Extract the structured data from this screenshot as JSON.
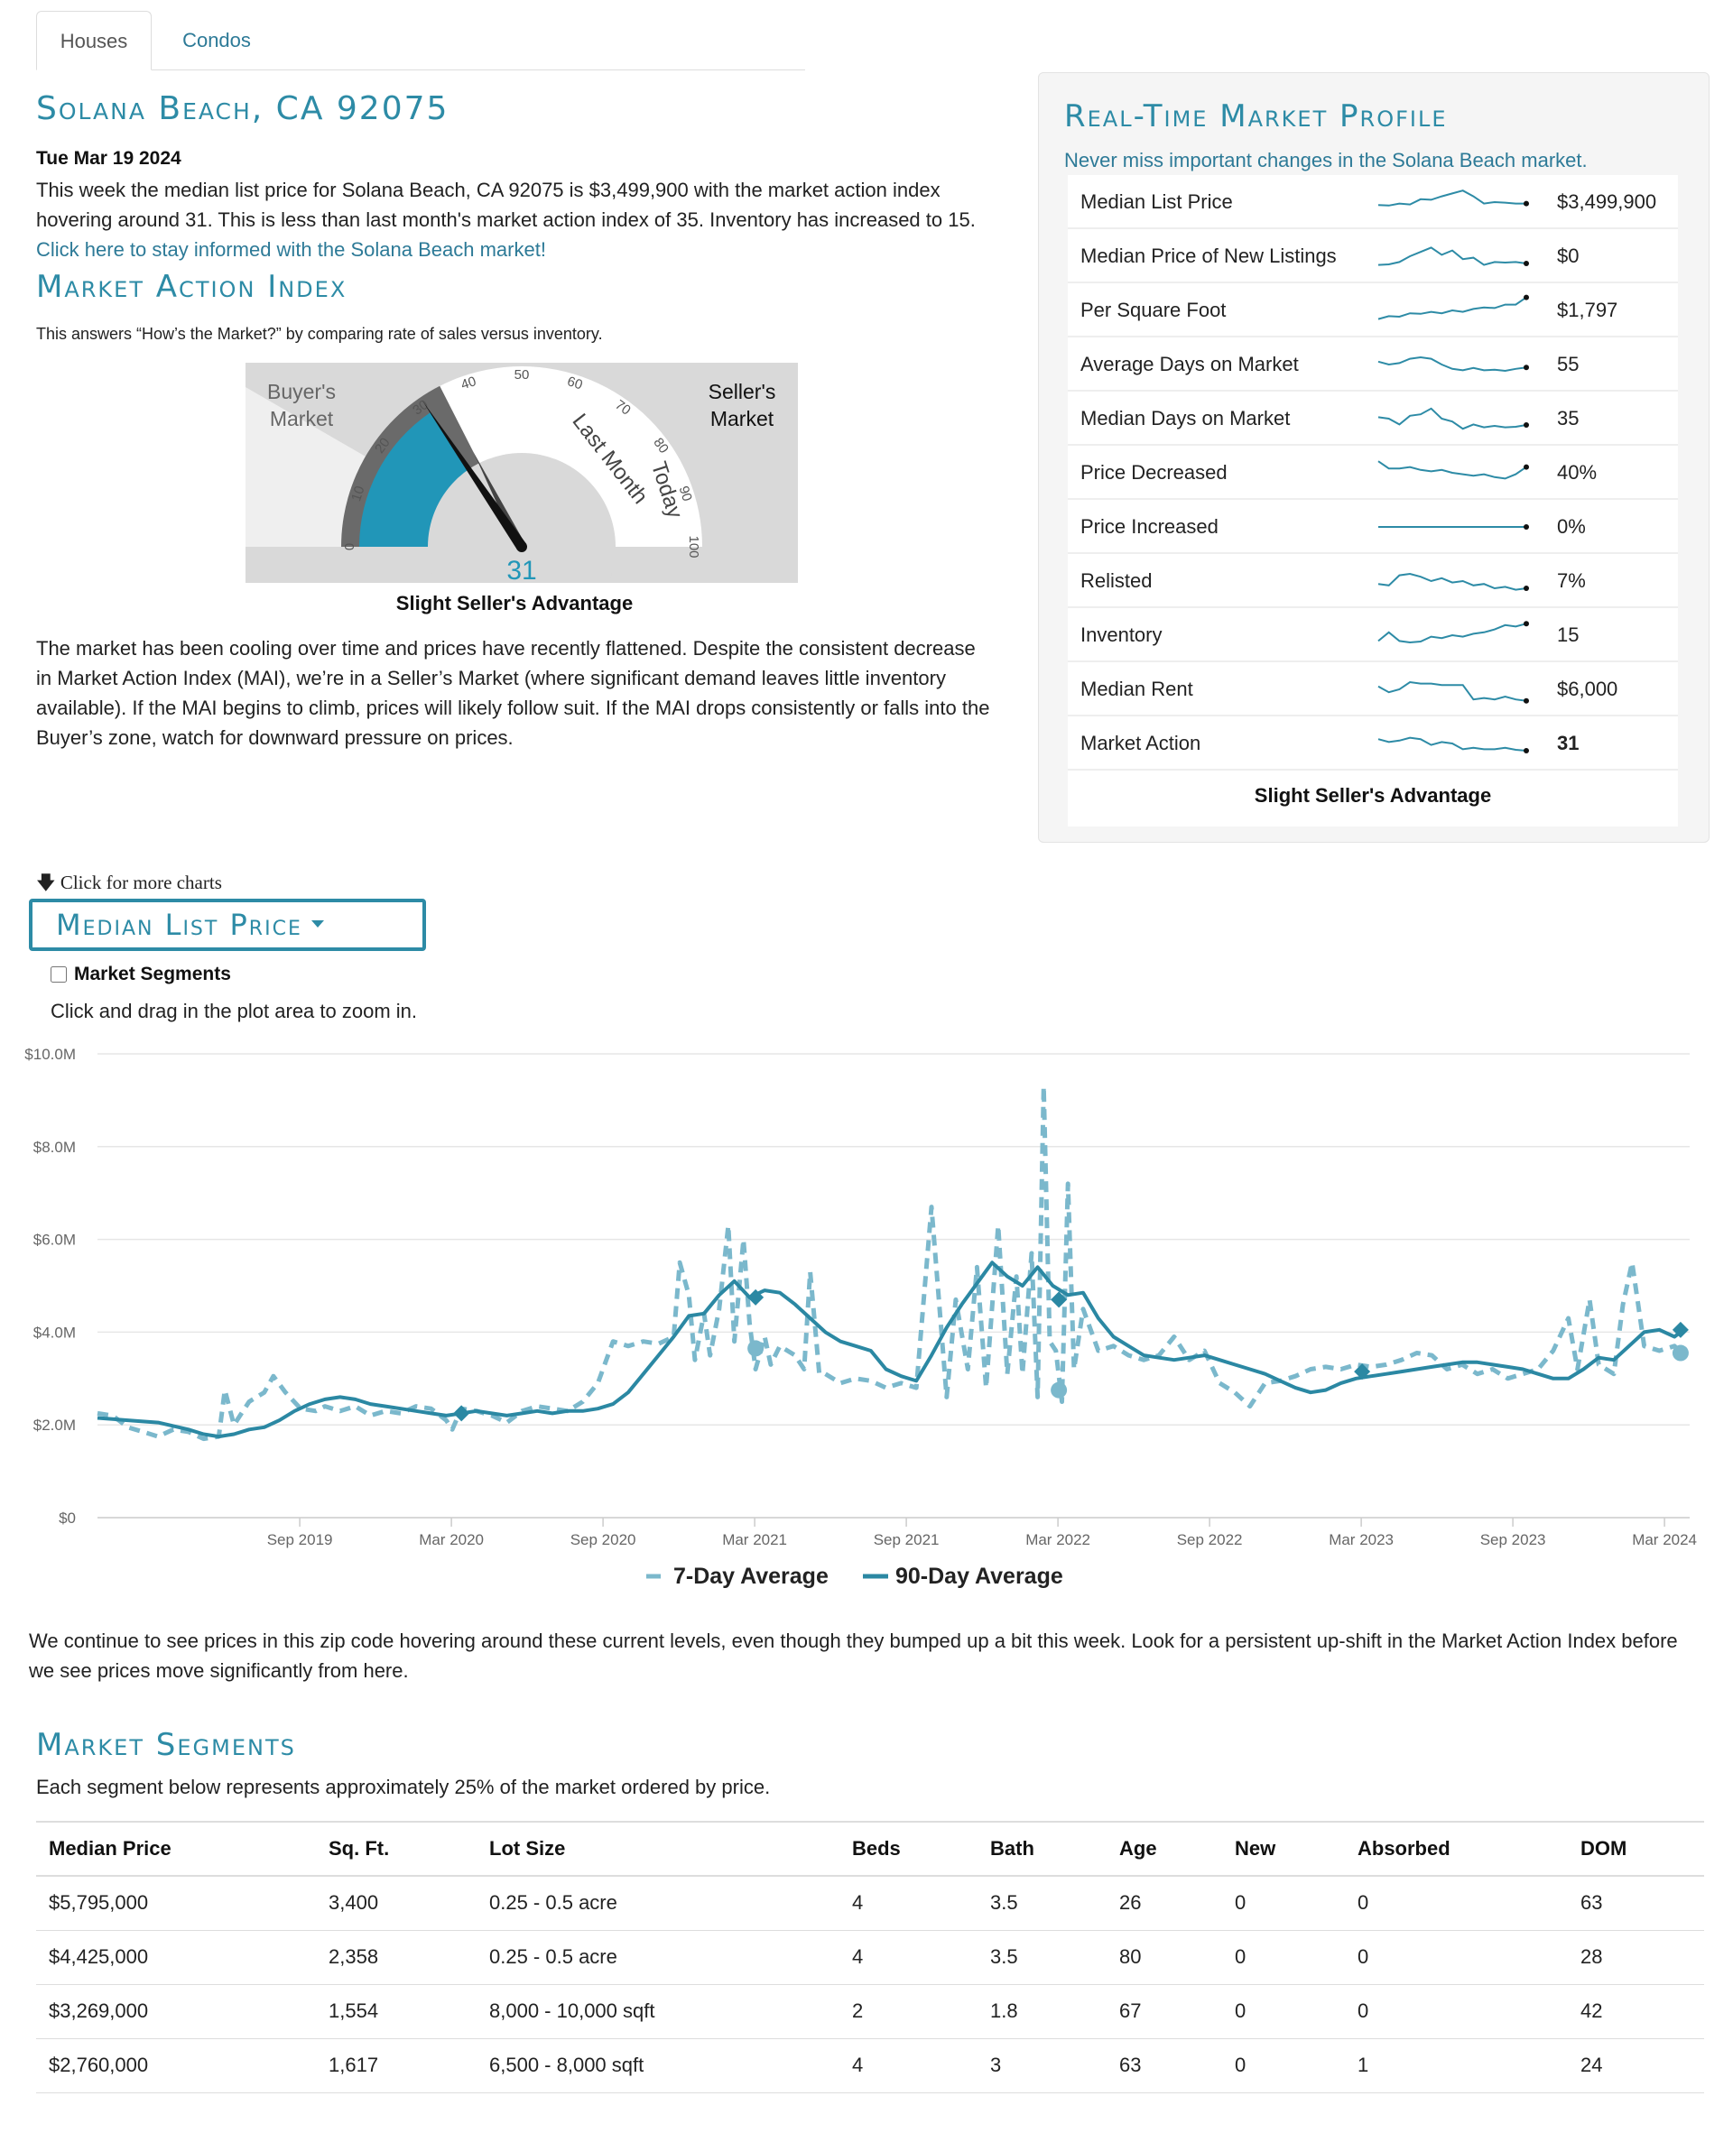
{
  "tabs": [
    {
      "label": "Houses",
      "active": true
    },
    {
      "label": "Condos",
      "active": false
    }
  ],
  "location": {
    "title": "Solana Beach, CA 92075",
    "date": "Tue Mar 19 2024",
    "intro": "This week the median list price for Solana Beach, CA 92075 is $3,499,900 with the market action index hovering around 31. This is less than last month's market action index of 35. Inventory has increased to 15. ",
    "intro_link": "Click here to stay informed with the Solana Beach market!"
  },
  "mai": {
    "title": "Market Action Index",
    "subtitle": "This answers “How’s the Market?” by comparing rate of sales versus inventory.",
    "buyers_line1": "Buyer's",
    "buyers_line2": "Market",
    "sellers_line1": "Seller's",
    "sellers_line2": "Market",
    "last_month_label": "Last Month",
    "today_label": "Today",
    "value": 31,
    "last_month_value": 35,
    "scale_min": 0,
    "scale_max": 100,
    "ticks": [
      "0",
      "10",
      "20",
      "30",
      "40",
      "50",
      "60",
      "70",
      "80",
      "90",
      "100"
    ],
    "caption": "Slight Seller's Advantage",
    "description": "The market has been cooling over time and prices have recently flattened. Despite the consistent decrease in Market Action Index (MAI), we’re in a Seller’s Market (where significant demand leaves little inventory available). If the MAI begins to climb, prices will likely follow suit. If the MAI drops consistently or falls into the Buyer’s zone, watch for downward pressure on prices.",
    "colors": {
      "today": "#2196b8",
      "last_month": "#6a6a6a",
      "panel": "#d9d9d9"
    }
  },
  "profile": {
    "title": "Real-Time Market Profile",
    "subtitle": "Never miss important changes in the Solana Beach market.",
    "rows": [
      {
        "label": "Median List Price",
        "value": "$3,499,900",
        "bold": false,
        "spark": [
          0.6,
          0.62,
          0.55,
          0.58,
          0.4,
          0.42,
          0.3,
          0.2,
          0.1,
          0.3,
          0.55,
          0.5,
          0.52,
          0.55,
          0.55
        ]
      },
      {
        "label": "Median Price of New Listings",
        "value": "$0",
        "bold": false,
        "spark": [
          0.8,
          0.78,
          0.7,
          0.5,
          0.35,
          0.2,
          0.45,
          0.3,
          0.6,
          0.55,
          0.8,
          0.7,
          0.72,
          0.7,
          0.75
        ]
      },
      {
        "label": "Per Square Foot",
        "value": "$1,797",
        "bold": false,
        "spark": [
          0.8,
          0.7,
          0.72,
          0.6,
          0.62,
          0.55,
          0.6,
          0.5,
          0.55,
          0.45,
          0.4,
          0.42,
          0.3,
          0.3,
          0.05
        ]
      },
      {
        "label": "Average Days on Market",
        "value": "55",
        "bold": false,
        "spark": [
          0.4,
          0.5,
          0.45,
          0.3,
          0.25,
          0.3,
          0.5,
          0.65,
          0.7,
          0.62,
          0.7,
          0.68,
          0.72,
          0.65,
          0.6
        ]
      },
      {
        "label": "Median Days on Market",
        "value": "35",
        "bold": false,
        "spark": [
          0.45,
          0.5,
          0.7,
          0.4,
          0.35,
          0.15,
          0.5,
          0.6,
          0.85,
          0.7,
          0.8,
          0.75,
          0.8,
          0.78,
          0.72
        ]
      },
      {
        "label": "Price Decreased",
        "value": "40%",
        "bold": false,
        "spark": [
          0.1,
          0.35,
          0.35,
          0.3,
          0.4,
          0.45,
          0.4,
          0.5,
          0.55,
          0.6,
          0.55,
          0.65,
          0.7,
          0.55,
          0.3
        ]
      },
      {
        "label": "Price Increased",
        "value": "0%",
        "bold": false,
        "spark": [
          0.5,
          0.5,
          0.5,
          0.5,
          0.5,
          0.5,
          0.5,
          0.5,
          0.5,
          0.5,
          0.5,
          0.5,
          0.5,
          0.5,
          0.5
        ]
      },
      {
        "label": "Relisted",
        "value": "7%",
        "bold": false,
        "spark": [
          0.6,
          0.65,
          0.3,
          0.25,
          0.35,
          0.5,
          0.4,
          0.55,
          0.5,
          0.65,
          0.6,
          0.75,
          0.7,
          0.8,
          0.75
        ]
      },
      {
        "label": "Inventory",
        "value": "15",
        "bold": false,
        "spark": [
          0.7,
          0.4,
          0.7,
          0.75,
          0.72,
          0.55,
          0.6,
          0.5,
          0.55,
          0.45,
          0.4,
          0.3,
          0.15,
          0.2,
          0.1
        ]
      },
      {
        "label": "Median Rent",
        "value": "$6,000",
        "bold": false,
        "spark": [
          0.4,
          0.6,
          0.5,
          0.25,
          0.3,
          0.3,
          0.35,
          0.35,
          0.35,
          0.85,
          0.8,
          0.85,
          0.75,
          0.85,
          0.9
        ]
      },
      {
        "label": "Market Action",
        "value": "31",
        "bold": true,
        "spark": [
          0.35,
          0.45,
          0.4,
          0.3,
          0.35,
          0.55,
          0.45,
          0.5,
          0.7,
          0.65,
          0.7,
          0.7,
          0.65,
          0.72,
          0.75
        ]
      }
    ],
    "footer": "Slight Seller's Advantage",
    "colors": {
      "spark": "#2d8ba6",
      "spark_end": "#111111"
    }
  },
  "chart_controls": {
    "more_charts": "Click for more charts",
    "metric_label": "Median List Price",
    "segments_checkbox": "Market Segments",
    "zoom_note": "Click and drag in the plot area to zoom in."
  },
  "chart_data": {
    "type": "line",
    "title": "Median List Price",
    "xlabel": "",
    "ylabel": "",
    "ylim": [
      0,
      10000000
    ],
    "y_ticks": [
      {
        "value": 0,
        "label": "$0"
      },
      {
        "value": 2000000,
        "label": "$2.0M"
      },
      {
        "value": 4000000,
        "label": "$4.0M"
      },
      {
        "value": 6000000,
        "label": "$6.0M"
      },
      {
        "value": 8000000,
        "label": "$8.0M"
      },
      {
        "value": 10000000,
        "label": "$10.0M"
      }
    ],
    "x_range": [
      2019.0,
      2024.25
    ],
    "x_ticks": [
      {
        "value": 2019.667,
        "label": "Sep 2019"
      },
      {
        "value": 2020.167,
        "label": "Mar 2020"
      },
      {
        "value": 2020.667,
        "label": "Sep 2020"
      },
      {
        "value": 2021.167,
        "label": "Mar 2021"
      },
      {
        "value": 2021.667,
        "label": "Sep 2021"
      },
      {
        "value": 2022.167,
        "label": "Mar 2022"
      },
      {
        "value": 2022.667,
        "label": "Sep 2022"
      },
      {
        "value": 2023.167,
        "label": "Mar 2023"
      },
      {
        "value": 2023.667,
        "label": "Sep 2023"
      },
      {
        "value": 2024.167,
        "label": "Mar 2024"
      }
    ],
    "grid": true,
    "legend": "bottom-center",
    "series": [
      {
        "name": "7-Day Average",
        "style": "dashed",
        "color": "#7bb8cc",
        "x": [
          2019.0,
          2019.05,
          2019.1,
          2019.15,
          2019.2,
          2019.25,
          2019.3,
          2019.35,
          2019.4,
          2019.42,
          2019.45,
          2019.5,
          2019.55,
          2019.58,
          2019.62,
          2019.67,
          2019.72,
          2019.75,
          2019.8,
          2019.85,
          2019.9,
          2019.95,
          2020.0,
          2020.05,
          2020.1,
          2020.15,
          2020.17,
          2020.2,
          2020.25,
          2020.3,
          2020.35,
          2020.4,
          2020.45,
          2020.5,
          2020.55,
          2020.6,
          2020.65,
          2020.7,
          2020.75,
          2020.8,
          2020.85,
          2020.9,
          2020.92,
          2020.95,
          2020.97,
          2021.0,
          2021.02,
          2021.05,
          2021.08,
          2021.1,
          2021.13,
          2021.15,
          2021.17,
          2021.2,
          2021.22,
          2021.25,
          2021.3,
          2021.33,
          2021.35,
          2021.38,
          2021.4,
          2021.45,
          2021.5,
          2021.55,
          2021.6,
          2021.65,
          2021.7,
          2021.75,
          2021.8,
          2021.83,
          2021.87,
          2021.9,
          2021.93,
          2021.97,
          2022.0,
          2022.03,
          2022.05,
          2022.08,
          2022.1,
          2022.12,
          2022.14,
          2022.16,
          2022.18,
          2022.2,
          2022.22,
          2022.25,
          2022.3,
          2022.35,
          2022.4,
          2022.45,
          2022.5,
          2022.55,
          2022.6,
          2022.65,
          2022.7,
          2022.75,
          2022.8,
          2022.85,
          2022.9,
          2022.95,
          2023.0,
          2023.05,
          2023.1,
          2023.15,
          2023.2,
          2023.25,
          2023.3,
          2023.35,
          2023.4,
          2023.45,
          2023.5,
          2023.55,
          2023.6,
          2023.65,
          2023.7,
          2023.75,
          2023.8,
          2023.85,
          2023.88,
          2023.92,
          2023.95,
          2024.0,
          2024.03,
          2024.06,
          2024.1,
          2024.15,
          2024.2,
          2024.22
        ],
        "y": [
          2250000,
          2200000,
          1950000,
          1850000,
          1750000,
          1900000,
          1850000,
          1700000,
          1750000,
          2750000,
          2000000,
          2500000,
          2700000,
          3050000,
          2700000,
          2350000,
          2300000,
          2400000,
          2300000,
          2400000,
          2200000,
          2300000,
          2250000,
          2400000,
          2350000,
          2100000,
          1900000,
          2350000,
          2300000,
          2200000,
          2050000,
          2300000,
          2400000,
          2350000,
          2300000,
          2500000,
          2900000,
          3800000,
          3700000,
          3800000,
          3750000,
          3900000,
          5500000,
          4800000,
          3400000,
          4400000,
          3500000,
          4500000,
          6300000,
          3800000,
          6000000,
          4200000,
          3200000,
          3900000,
          3300000,
          3700000,
          3500000,
          3200000,
          5300000,
          3100000,
          3100000,
          2900000,
          3000000,
          2950000,
          2800000,
          2900000,
          2800000,
          6700000,
          2600000,
          4700000,
          3200000,
          5400000,
          2800000,
          6300000,
          3100000,
          5200000,
          3100000,
          5700000,
          2600000,
          9300000,
          3800000,
          3600000,
          2500000,
          7200000,
          3200000,
          4500000,
          3600000,
          3700000,
          3500000,
          3400000,
          3500000,
          3900000,
          3400000,
          3600000,
          2900000,
          2700000,
          2400000,
          2900000,
          2950000,
          3050000,
          3200000,
          3250000,
          3200000,
          3300000,
          3250000,
          3300000,
          3400000,
          3550000,
          3500000,
          3200000,
          3300000,
          3100000,
          3200000,
          3000000,
          3100000,
          3200000,
          3600000,
          4300000,
          3200000,
          4700000,
          3300000,
          3100000,
          4600000,
          5500000,
          3700000,
          3600000,
          3700000,
          3550000
        ]
      },
      {
        "name": "90-Day Average",
        "style": "solid",
        "color": "#2b88a3",
        "x": [
          2019.0,
          2019.1,
          2019.2,
          2019.3,
          2019.35,
          2019.4,
          2019.45,
          2019.5,
          2019.55,
          2019.6,
          2019.65,
          2019.7,
          2019.75,
          2019.8,
          2019.85,
          2019.9,
          2019.95,
          2020.0,
          2020.05,
          2020.1,
          2020.15,
          2020.2,
          2020.25,
          2020.3,
          2020.35,
          2020.4,
          2020.45,
          2020.5,
          2020.55,
          2020.6,
          2020.65,
          2020.7,
          2020.75,
          2020.8,
          2020.85,
          2020.9,
          2020.95,
          2021.0,
          2021.05,
          2021.1,
          2021.15,
          2021.2,
          2021.25,
          2021.3,
          2021.35,
          2021.4,
          2021.45,
          2021.5,
          2021.55,
          2021.6,
          2021.65,
          2021.7,
          2021.75,
          2021.8,
          2021.85,
          2021.9,
          2021.95,
          2022.0,
          2022.05,
          2022.1,
          2022.15,
          2022.2,
          2022.25,
          2022.3,
          2022.35,
          2022.4,
          2022.45,
          2022.5,
          2022.55,
          2022.6,
          2022.65,
          2022.7,
          2022.75,
          2022.8,
          2022.85,
          2022.9,
          2022.95,
          2023.0,
          2023.05,
          2023.1,
          2023.15,
          2023.2,
          2023.25,
          2023.3,
          2023.35,
          2023.4,
          2023.45,
          2023.5,
          2023.55,
          2023.6,
          2023.65,
          2023.7,
          2023.75,
          2023.8,
          2023.85,
          2023.9,
          2023.95,
          2024.0,
          2024.05,
          2024.1,
          2024.15,
          2024.2,
          2024.22
        ],
        "y": [
          2150000,
          2100000,
          2050000,
          1900000,
          1800000,
          1750000,
          1800000,
          1900000,
          1950000,
          2100000,
          2300000,
          2450000,
          2550000,
          2600000,
          2550000,
          2450000,
          2400000,
          2350000,
          2300000,
          2250000,
          2200000,
          2250000,
          2300000,
          2250000,
          2200000,
          2250000,
          2300000,
          2250000,
          2300000,
          2300000,
          2350000,
          2450000,
          2700000,
          3100000,
          3500000,
          3900000,
          4350000,
          4400000,
          4800000,
          5100000,
          4750000,
          4900000,
          4850000,
          4600000,
          4300000,
          4000000,
          3800000,
          3700000,
          3600000,
          3200000,
          3050000,
          2950000,
          3500000,
          4100000,
          4600000,
          5050000,
          5500000,
          5200000,
          5000000,
          5400000,
          5000000,
          4800000,
          4850000,
          4300000,
          3900000,
          3700000,
          3500000,
          3450000,
          3400000,
          3450000,
          3500000,
          3400000,
          3300000,
          3200000,
          3100000,
          2950000,
          2800000,
          2700000,
          2750000,
          2900000,
          3000000,
          3050000,
          3100000,
          3150000,
          3200000,
          3250000,
          3300000,
          3350000,
          3350000,
          3300000,
          3250000,
          3200000,
          3100000,
          3000000,
          3000000,
          3200000,
          3450000,
          3400000,
          3700000,
          4000000,
          4050000,
          3900000,
          4000000
        ]
      }
    ],
    "markers": {
      "series_90_diamonds": [
        {
          "x": 2020.2,
          "y": 2250000
        },
        {
          "x": 2021.17,
          "y": 4750000
        },
        {
          "x": 2022.17,
          "y": 4700000
        },
        {
          "x": 2023.17,
          "y": 3150000
        },
        {
          "x": 2024.22,
          "y": 4050000
        }
      ],
      "series_7_circles": [
        {
          "x": 2021.17,
          "y": 3650000
        },
        {
          "x": 2022.17,
          "y": 2750000
        },
        {
          "x": 2024.22,
          "y": 3550000
        }
      ]
    }
  },
  "after_chart_text": "We continue to see prices in this zip code hovering around these current levels, even though they bumped up a bit this week. Look for a persistent up-shift in the Market Action Index before we see prices move significantly from here.",
  "segments": {
    "title": "Market Segments",
    "subtitle": "Each segment below represents approximately 25% of the market ordered by price.",
    "columns": [
      "Median Price",
      "Sq. Ft.",
      "Lot Size",
      "Beds",
      "Bath",
      "Age",
      "New",
      "Absorbed",
      "DOM"
    ],
    "rows": [
      [
        "$5,795,000",
        "3,400",
        "0.25 - 0.5 acre",
        "4",
        "3.5",
        "26",
        "0",
        "0",
        "63"
      ],
      [
        "$4,425,000",
        "2,358",
        "0.25 - 0.5 acre",
        "4",
        "3.5",
        "80",
        "0",
        "0",
        "28"
      ],
      [
        "$3,269,000",
        "1,554",
        "8,000 - 10,000 sqft",
        "2",
        "1.8",
        "67",
        "0",
        "0",
        "42"
      ],
      [
        "$2,760,000",
        "1,617",
        "6,500 - 8,000 sqft",
        "4",
        "3",
        "63",
        "0",
        "1",
        "24"
      ]
    ]
  }
}
